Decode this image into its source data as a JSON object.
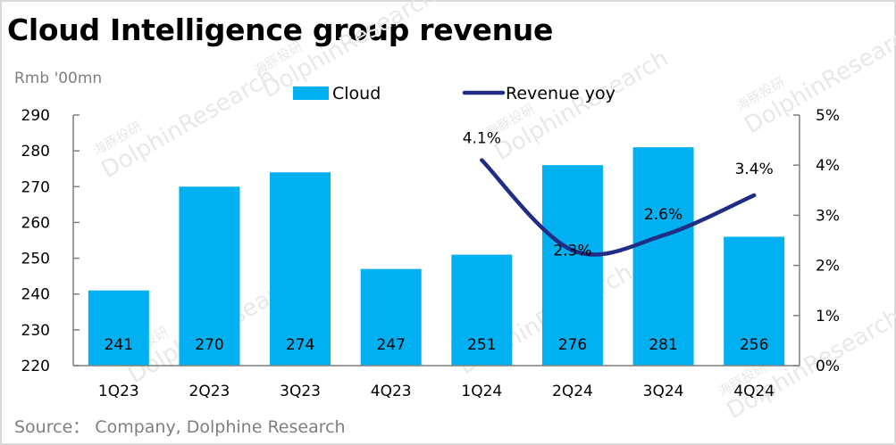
{
  "header": {
    "title": "Cloud Intelligence group revenue",
    "unit": "Rmb '00mn"
  },
  "footer": {
    "source": "Source：  Company, Dolphine Research"
  },
  "watermark": {
    "text": "DolphinResearch",
    "text_cn": "海豚投研"
  },
  "colors": {
    "bar": "#00b0f0",
    "line": "#1f2d86",
    "axis": "#7f7f7f"
  },
  "chart_data": {
    "type": "bar+line",
    "title": "Cloud Intelligence group revenue",
    "ylabel": "Rmb '00mn",
    "categories": [
      "1Q23",
      "2Q23",
      "3Q23",
      "4Q23",
      "1Q24",
      "2Q24",
      "3Q24",
      "4Q24"
    ],
    "series": [
      {
        "name": "Cloud",
        "type": "bar",
        "axis": "left",
        "values": [
          241,
          270,
          274,
          247,
          251,
          276,
          281,
          256
        ],
        "labels": [
          "241",
          "270",
          "274",
          "247",
          "251",
          "276",
          "281",
          "256"
        ]
      },
      {
        "name": "Revenue yoy",
        "type": "line",
        "axis": "right",
        "values": [
          null,
          null,
          null,
          null,
          4.1,
          2.3,
          2.6,
          3.4
        ],
        "labels": [
          "",
          "",
          "",
          "",
          "4.1%",
          "2.3%",
          "2.6%",
          "3.4%"
        ],
        "smooth": true
      }
    ],
    "y_left": {
      "min": 220,
      "max": 290,
      "ticks": [
        "220",
        "230",
        "240",
        "250",
        "260",
        "270",
        "280",
        "290"
      ],
      "tick_values": [
        220,
        230,
        240,
        250,
        260,
        270,
        280,
        290
      ]
    },
    "y_right": {
      "min": 0,
      "max": 5,
      "ticks": [
        "0%",
        "1%",
        "2%",
        "3%",
        "4%",
        "5%"
      ],
      "tick_values": [
        0,
        1,
        2,
        3,
        4,
        5
      ]
    },
    "legend": {
      "position": "top",
      "entries": [
        "Cloud",
        "Revenue yoy"
      ]
    },
    "grid": false
  }
}
